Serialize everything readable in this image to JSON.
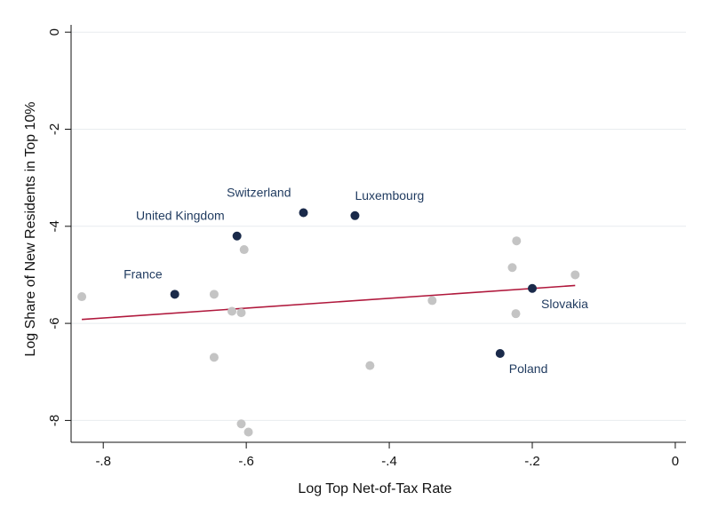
{
  "chart_data": {
    "type": "scatter",
    "title": "",
    "xlabel": "Log Top Net-of-Tax Rate",
    "ylabel": "Log Share of New Residents in Top 10%",
    "xlim": [
      -0.845,
      0.015
    ],
    "ylim": [
      -8.45,
      0.15
    ],
    "x_ticks": [
      -0.8,
      -0.6,
      -0.4,
      -0.2,
      0
    ],
    "x_tick_labels": [
      "-.8",
      "-.6",
      "-.4",
      "-.2",
      "0"
    ],
    "y_ticks": [
      0,
      -2,
      -4,
      -6,
      -8
    ],
    "y_tick_labels": [
      "0",
      "-2",
      "-4",
      "-6",
      "-8"
    ],
    "grid": "horizontal",
    "legend": "none",
    "colors": {
      "highlight": "#1a2a4a",
      "other": "#c4c4c4",
      "fit_line": "#b0183c",
      "label_text": "#1f3a5f",
      "grid": "#e8ecef"
    },
    "fit_line": {
      "x": [
        -0.83,
        -0.14
      ],
      "y": [
        -5.92,
        -5.22
      ]
    },
    "highlighted": [
      {
        "label": "Switzerland",
        "x": -0.52,
        "y": -3.72,
        "label_pos": "above-left"
      },
      {
        "label": "Luxembourg",
        "x": -0.448,
        "y": -3.78,
        "label_pos": "above-right"
      },
      {
        "label": "United Kingdom",
        "x": -0.613,
        "y": -4.2,
        "label_pos": "above-left"
      },
      {
        "label": "France",
        "x": -0.7,
        "y": -5.4,
        "label_pos": "above-left"
      },
      {
        "label": "Slovakia",
        "x": -0.2,
        "y": -5.28,
        "label_pos": "below-right"
      },
      {
        "label": "Poland",
        "x": -0.245,
        "y": -6.62,
        "label_pos": "below-right"
      }
    ],
    "others": [
      {
        "x": -0.83,
        "y": -5.45
      },
      {
        "x": -0.645,
        "y": -5.4
      },
      {
        "x": -0.62,
        "y": -5.75
      },
      {
        "x": -0.607,
        "y": -5.78
      },
      {
        "x": -0.603,
        "y": -4.48
      },
      {
        "x": -0.645,
        "y": -6.7
      },
      {
        "x": -0.607,
        "y": -8.07
      },
      {
        "x": -0.597,
        "y": -8.24
      },
      {
        "x": -0.427,
        "y": -6.87
      },
      {
        "x": -0.34,
        "y": -5.53
      },
      {
        "x": -0.222,
        "y": -4.3
      },
      {
        "x": -0.228,
        "y": -4.85
      },
      {
        "x": -0.223,
        "y": -5.8
      },
      {
        "x": -0.14,
        "y": -5.0
      }
    ]
  }
}
